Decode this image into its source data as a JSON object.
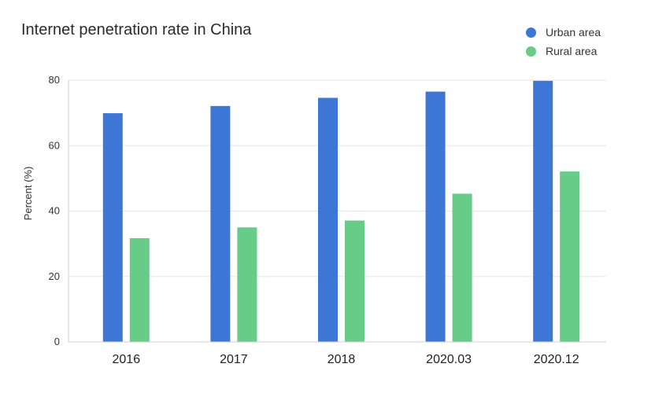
{
  "chart_data": {
    "type": "bar",
    "title": "Internet penetration rate in China",
    "ylabel": "Percent (%)",
    "xlabel": "",
    "categories": [
      "2016",
      "2017",
      "2018",
      "2020.03",
      "2020.12"
    ],
    "series": [
      {
        "name": "Urban area",
        "color": "#3e76d6",
        "values": [
          69.9,
          72.1,
          74.6,
          76.5,
          79.8
        ]
      },
      {
        "name": "Rural area",
        "color": "#66cc88",
        "values": [
          31.7,
          35.0,
          37.1,
          45.3,
          52.1
        ]
      }
    ],
    "ylim": [
      0,
      80
    ],
    "yticks": [
      "0",
      "20",
      "40",
      "60",
      "80"
    ],
    "grid": true,
    "legend_position": "top-right"
  }
}
